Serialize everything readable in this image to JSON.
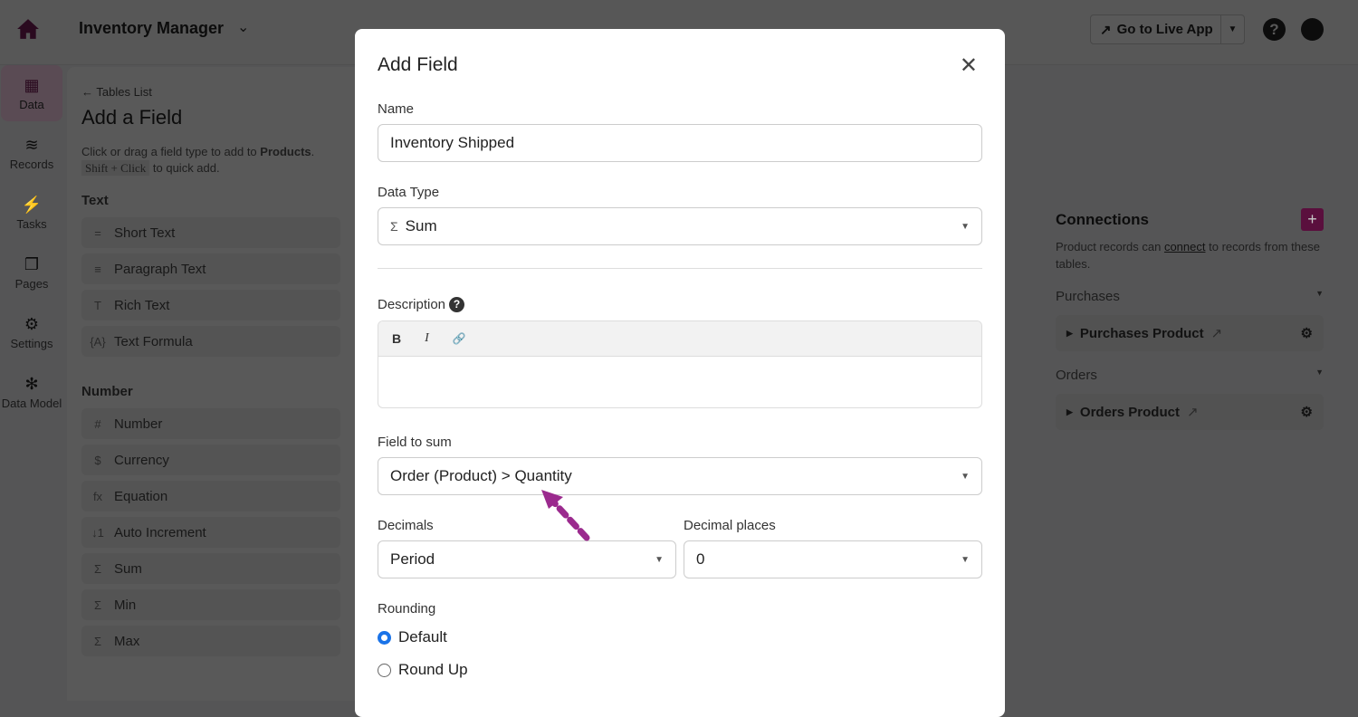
{
  "topbar": {
    "app_name": "Inventory Manager",
    "go_live_label": "Go to Live App",
    "help": "?"
  },
  "nav": [
    {
      "label": "Data",
      "icon": "table-icon"
    },
    {
      "label": "Records",
      "icon": "database-icon"
    },
    {
      "label": "Tasks",
      "icon": "bolt-icon"
    },
    {
      "label": "Pages",
      "icon": "pages-icon"
    },
    {
      "label": "Settings",
      "icon": "gear-icon"
    },
    {
      "label": "Data Model",
      "icon": "network-icon"
    }
  ],
  "panel": {
    "back": "Tables List",
    "title": "Add a Field",
    "hint_pre": "Click or drag a field type to add to ",
    "hint_table": "Products",
    "hint_post": ".",
    "shortcut": "Shift + Click",
    "shortcut_post": " to quick add.",
    "text_section": "Text",
    "text_types": [
      {
        "icon": "=",
        "label": "Short Text"
      },
      {
        "icon": "≡",
        "label": "Paragraph Text"
      },
      {
        "icon": "T",
        "label": "Rich Text"
      },
      {
        "icon": "{A}",
        "label": "Text Formula"
      }
    ],
    "number_section": "Number",
    "number_types": [
      {
        "icon": "#",
        "label": "Number"
      },
      {
        "icon": "$",
        "label": "Currency"
      },
      {
        "icon": "fx",
        "label": "Equation"
      },
      {
        "icon": "↓1",
        "label": "Auto Increment"
      },
      {
        "icon": "Σ",
        "label": "Sum"
      },
      {
        "icon": "Σ",
        "label": "Min"
      },
      {
        "icon": "Σ",
        "label": "Max"
      }
    ]
  },
  "connections": {
    "title": "Connections",
    "desc_pre": "Product records can ",
    "desc_link": "connect",
    "desc_post": " to records from these tables.",
    "groups": [
      {
        "name": "Purchases",
        "item": "Purchases Product"
      },
      {
        "name": "Orders",
        "item": "Orders Product"
      }
    ]
  },
  "modal": {
    "title": "Add Field",
    "name_label": "Name",
    "name_value": "Inventory Shipped",
    "type_label": "Data Type",
    "type_icon": "Σ",
    "type_value": "Sum",
    "desc_label": "Description",
    "toolbar": {
      "bold": "B",
      "italic": "I",
      "link": "🔗"
    },
    "sum_label": "Field to sum",
    "sum_value": "Order (Product) > Quantity",
    "decimals_label": "Decimals",
    "decimals_value": "Period",
    "places_label": "Decimal places",
    "places_value": "0",
    "rounding_label": "Rounding",
    "rounding_options": [
      {
        "label": "Default",
        "selected": true
      },
      {
        "label": "Round Up",
        "selected": false
      }
    ]
  },
  "colors": {
    "brand": "#a01a6c",
    "annotation_arrow": "#9b2a8e",
    "radio_selected": "#1a73e8"
  }
}
